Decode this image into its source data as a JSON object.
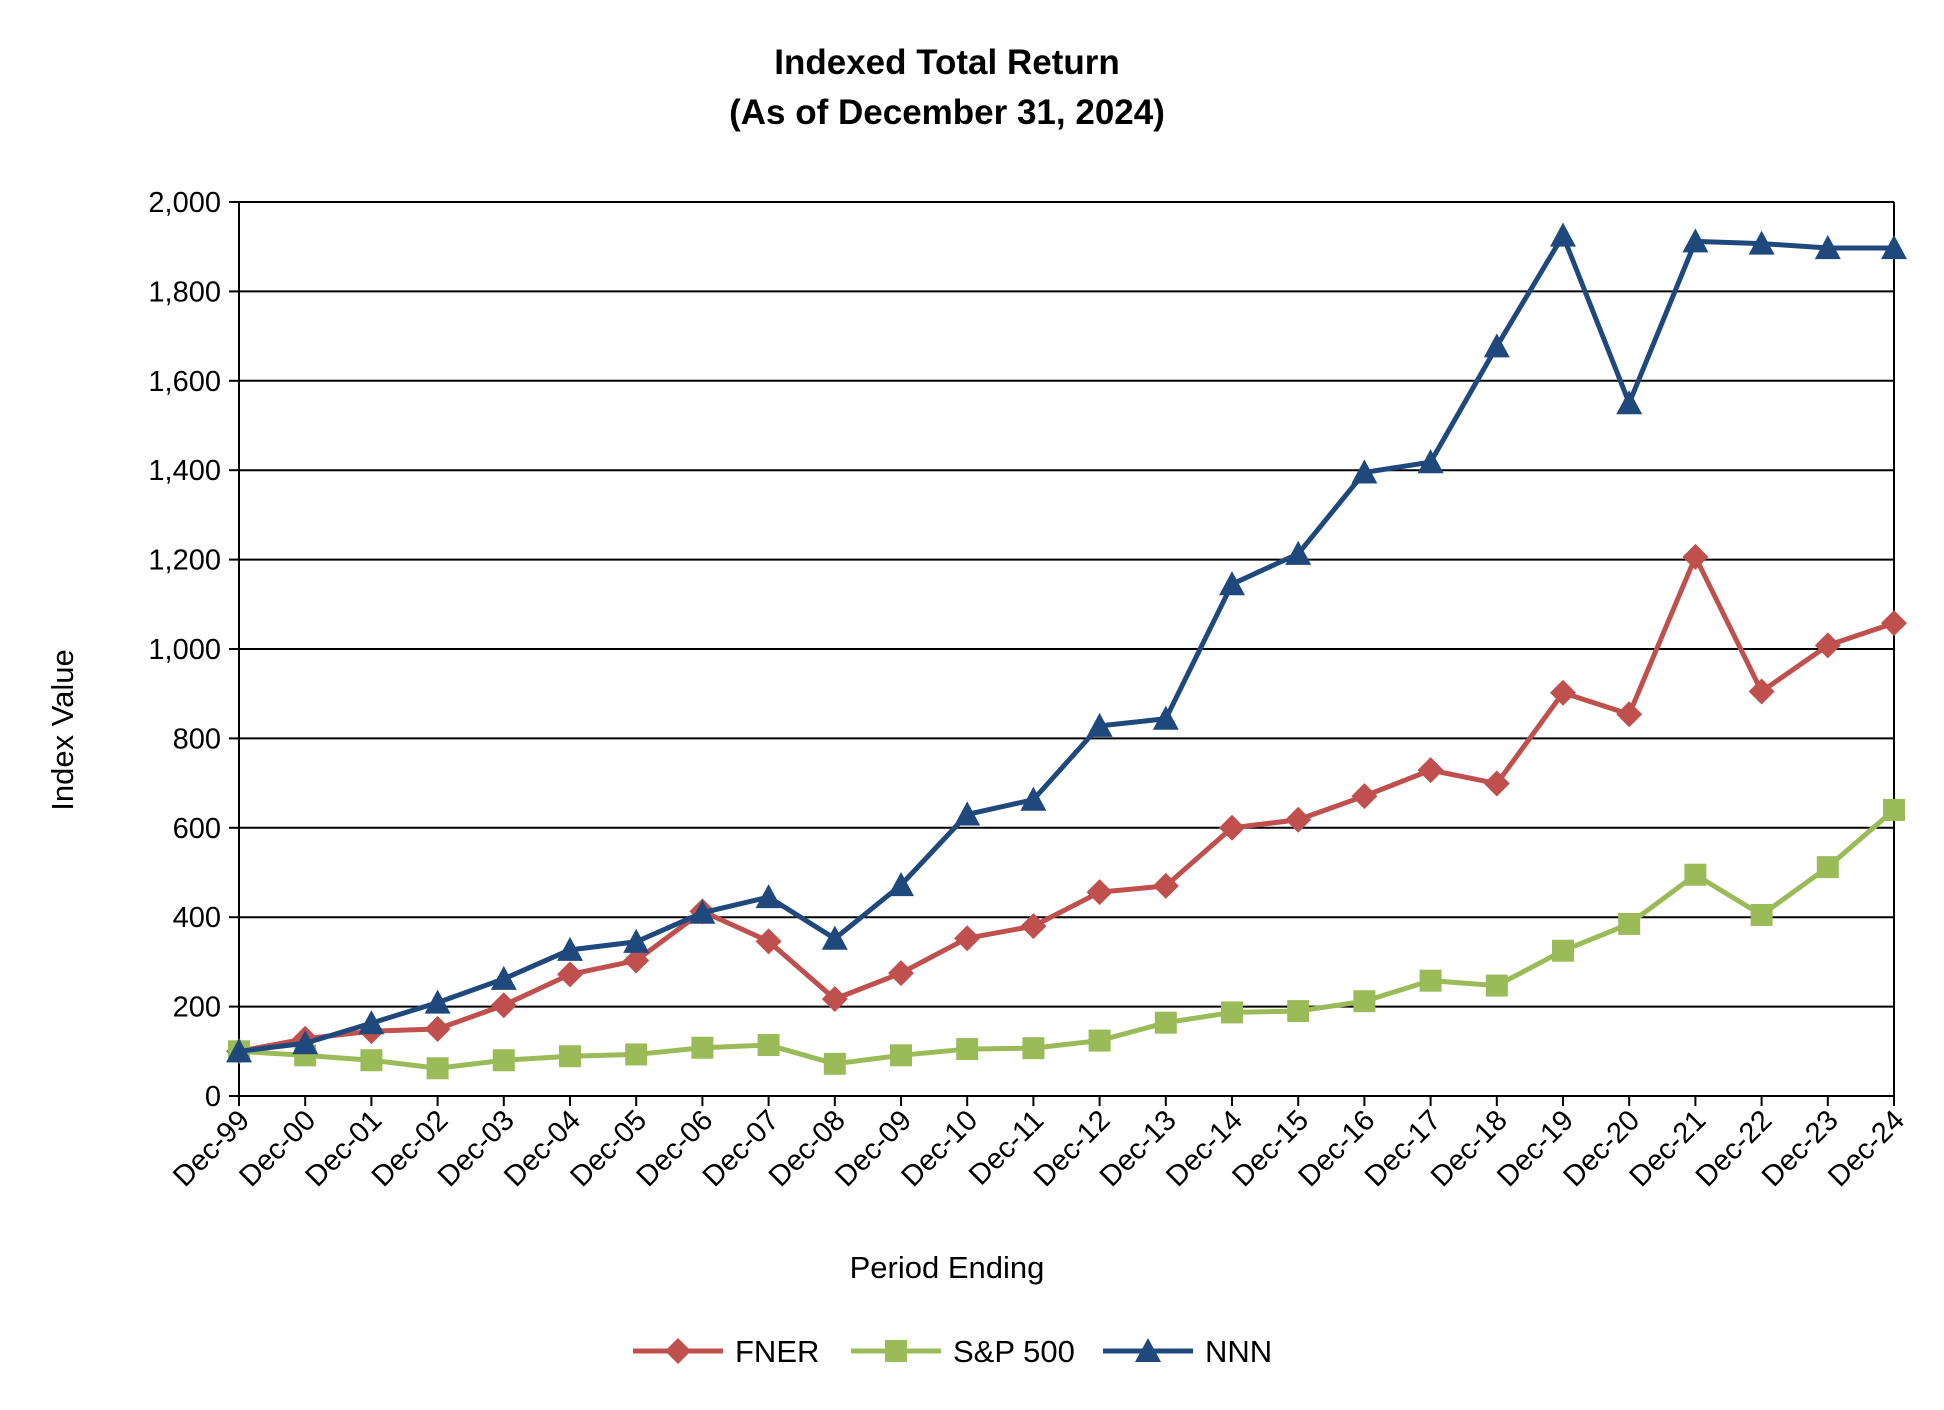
{
  "chart_data": {
    "type": "line",
    "title": "Indexed Total Return",
    "subtitle": "(As of December 31, 2024)",
    "xlabel": "Period Ending",
    "ylabel": "Index Value",
    "ylim": [
      0,
      2000
    ],
    "yticks": [
      "0",
      "200",
      "400",
      "600",
      "800",
      "1,000",
      "1,200",
      "1,400",
      "1,600",
      "1,800",
      "2,000"
    ],
    "ytick_values": [
      0,
      200,
      400,
      600,
      800,
      1000,
      1200,
      1400,
      1600,
      1800,
      2000
    ],
    "grid": "horizontal",
    "legend_position": "bottom",
    "categories": [
      "Dec-99",
      "Dec-00",
      "Dec-01",
      "Dec-02",
      "Dec-03",
      "Dec-04",
      "Dec-05",
      "Dec-06",
      "Dec-07",
      "Dec-08",
      "Dec-09",
      "Dec-10",
      "Dec-11",
      "Dec-12",
      "Dec-13",
      "Dec-14",
      "Dec-15",
      "Dec-16",
      "Dec-17",
      "Dec-18",
      "Dec-19",
      "Dec-20",
      "Dec-21",
      "Dec-22",
      "Dec-23",
      "Dec-24"
    ],
    "series": [
      {
        "name": "FNER",
        "color": "#C0504D",
        "marker": "diamond",
        "values": [
          100,
          128,
          145,
          150,
          203,
          272,
          303,
          413,
          346,
          217,
          275,
          353,
          380,
          456,
          470,
          600,
          618,
          671,
          729,
          699,
          902,
          854,
          1206,
          905,
          1008,
          1058
        ]
      },
      {
        "name": "S&P 500",
        "color": "#9BBB59",
        "marker": "square",
        "values": [
          100,
          91,
          80,
          62,
          80,
          89,
          93,
          108,
          114,
          72,
          91,
          105,
          107,
          124,
          164,
          187,
          190,
          212,
          258,
          247,
          325,
          385,
          495,
          405,
          512,
          640
        ]
      },
      {
        "name": "NNN",
        "color": "#1F497D",
        "marker": "triangle",
        "values": [
          100,
          118,
          163,
          209,
          262,
          327,
          345,
          410,
          445,
          352,
          472,
          630,
          663,
          828,
          844,
          1145,
          1213,
          1395,
          1418,
          1677,
          1925,
          1550,
          1912,
          1907,
          1897,
          1897
        ]
      }
    ]
  }
}
